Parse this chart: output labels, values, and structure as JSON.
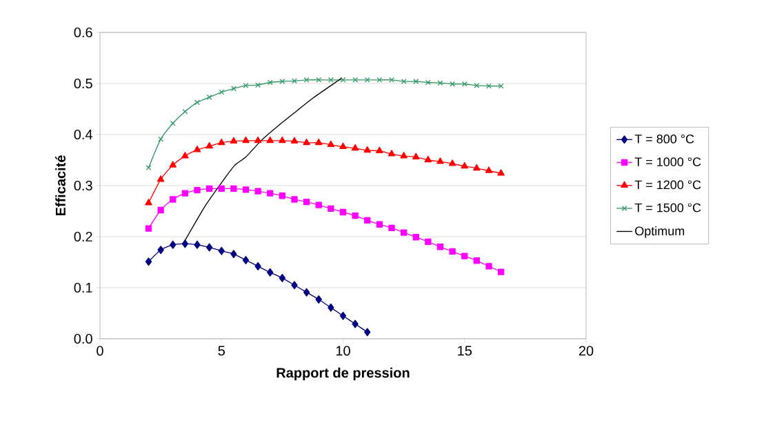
{
  "chart_data": {
    "type": "line",
    "xlabel": "Rapport de pression",
    "ylabel": "Efficacité",
    "xlim": [
      0,
      20
    ],
    "xticks": [
      0,
      5,
      10,
      15,
      20
    ],
    "ylim": [
      0,
      0.6
    ],
    "yticks": [
      {
        "value": 0,
        "label": "0.0"
      },
      0.1,
      0.2,
      0.3,
      0.4,
      0.5,
      0.6
    ],
    "grid": "y",
    "legend": "right",
    "line_style": "solid",
    "series": [
      {
        "name": "T = 800 °C",
        "color": "#000080",
        "marker": "diamond",
        "x": [
          2,
          2.5,
          3,
          3.5,
          4,
          4.5,
          5,
          5.5,
          6,
          6.5,
          7,
          7.5,
          8,
          8.5,
          9,
          9.5,
          10,
          10.5,
          11
        ],
        "values": [
          0.151,
          0.174,
          0.184,
          0.186,
          0.184,
          0.179,
          0.172,
          0.166,
          0.154,
          0.142,
          0.13,
          0.119,
          0.105,
          0.091,
          0.077,
          0.061,
          0.045,
          0.029,
          0.013
        ]
      },
      {
        "name": "T = 1000 °C",
        "color": "#ff00ff",
        "marker": "square",
        "x": [
          2,
          2.5,
          3,
          3.5,
          4,
          4.5,
          5,
          5.5,
          6,
          6.5,
          7,
          7.5,
          8,
          8.5,
          9,
          9.5,
          10,
          10.5,
          11,
          11.5,
          12,
          12.5,
          13,
          13.5,
          14,
          14.5,
          15,
          15.5,
          16,
          16.5
        ],
        "values": [
          0.216,
          0.252,
          0.273,
          0.285,
          0.291,
          0.294,
          0.294,
          0.294,
          0.292,
          0.289,
          0.285,
          0.28,
          0.273,
          0.268,
          0.262,
          0.255,
          0.248,
          0.241,
          0.232,
          0.224,
          0.217,
          0.208,
          0.199,
          0.19,
          0.18,
          0.171,
          0.162,
          0.153,
          0.142,
          0.131
        ]
      },
      {
        "name": "T = 1200 °C",
        "color": "#ff0000",
        "marker": "triangle",
        "x": [
          2,
          2.5,
          3,
          3.5,
          4,
          4.5,
          5,
          5.5,
          6,
          6.5,
          7,
          7.5,
          8,
          8.5,
          9,
          9.5,
          10,
          10.5,
          11,
          11.5,
          12,
          12.5,
          13,
          13.5,
          14,
          14.5,
          15,
          15.5,
          16,
          16.5
        ],
        "values": [
          0.266,
          0.312,
          0.34,
          0.358,
          0.37,
          0.377,
          0.384,
          0.387,
          0.388,
          0.388,
          0.388,
          0.388,
          0.387,
          0.384,
          0.384,
          0.38,
          0.376,
          0.373,
          0.369,
          0.368,
          0.362,
          0.358,
          0.356,
          0.35,
          0.347,
          0.343,
          0.338,
          0.334,
          0.329,
          0.324
        ]
      },
      {
        "name": "T = 1500 °C",
        "color": "#339966",
        "marker": "cross",
        "x": [
          2,
          2.5,
          3,
          3.5,
          4,
          4.5,
          5,
          5.5,
          6,
          6.5,
          7,
          7.5,
          8,
          8.5,
          9,
          9.5,
          10,
          10.5,
          11,
          11.5,
          12,
          12.5,
          13,
          13.5,
          14,
          14.5,
          15,
          15.5,
          16,
          16.5
        ],
        "values": [
          0.335,
          0.391,
          0.422,
          0.445,
          0.463,
          0.473,
          0.483,
          0.49,
          0.496,
          0.497,
          0.502,
          0.504,
          0.505,
          0.507,
          0.507,
          0.507,
          0.507,
          0.507,
          0.507,
          0.507,
          0.507,
          0.504,
          0.504,
          0.502,
          0.501,
          0.499,
          0.499,
          0.496,
          0.495,
          0.495
        ]
      },
      {
        "name": "Optimum",
        "color": "#000000",
        "marker": "none",
        "x": [
          3.48,
          4.3,
          4.96,
          5.53,
          6.0,
          6.67,
          7.38,
          8.09,
          8.75,
          9.96
        ],
        "values": [
          0.191,
          0.258,
          0.303,
          0.339,
          0.356,
          0.39,
          0.419,
          0.446,
          0.471,
          0.511
        ]
      }
    ]
  }
}
